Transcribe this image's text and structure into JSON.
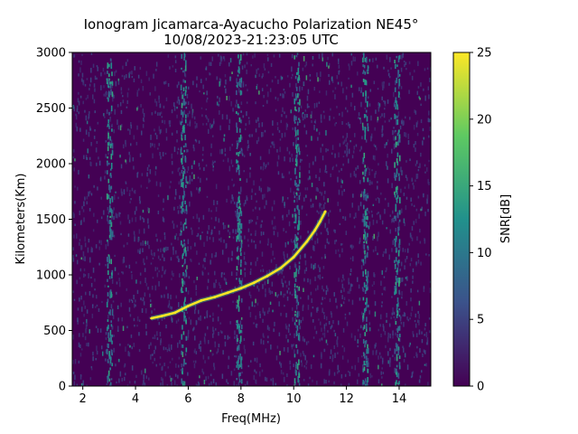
{
  "chart_data": {
    "type": "heatmap",
    "title_line1": "Ionogram Jicamarca-Ayacucho Polarization NE45°",
    "title_line2": "10/08/2023-21:23:05 UTC",
    "xlabel": "Freq(MHz)",
    "ylabel": "Kilometers(Km)",
    "colorbar_label": "SNR[dB]",
    "xlim": [
      1.6,
      15.2
    ],
    "ylim": [
      0,
      3000
    ],
    "x_ticks": [
      2,
      4,
      6,
      8,
      10,
      12,
      14
    ],
    "x_tick_labels": [
      "2",
      "4",
      "6",
      "8",
      "10",
      "12",
      "14"
    ],
    "y_ticks": [
      0,
      500,
      1000,
      1500,
      2000,
      2500,
      3000
    ],
    "y_tick_labels": [
      "0",
      "500",
      "1000",
      "1500",
      "2000",
      "2500",
      "3000"
    ],
    "colorbar_range": [
      0,
      25
    ],
    "colorbar_ticks": [
      0,
      5,
      10,
      15,
      20,
      25
    ],
    "colorbar_tick_labels": [
      "0",
      "5",
      "10",
      "15",
      "20",
      "25"
    ],
    "colormap": "viridis",
    "colormap_stops": [
      "#440154",
      "#3b528b",
      "#21918c",
      "#5ec962",
      "#fde725"
    ],
    "background_color": "#440154",
    "trace": {
      "name": "",
      "x": [
        4.6,
        5.0,
        5.5,
        6.0,
        6.5,
        7.0,
        7.5,
        8.0,
        8.5,
        9.0,
        9.5,
        10.0,
        10.5,
        10.8,
        11.0,
        11.2
      ],
      "y": [
        610,
        630,
        660,
        720,
        770,
        800,
        840,
        880,
        930,
        990,
        1060,
        1160,
        1300,
        1400,
        1480,
        1570
      ],
      "snr": 25
    },
    "vertical_bands_mhz": [
      3.0,
      5.8,
      7.9,
      10.1,
      12.7,
      13.9
    ]
  }
}
